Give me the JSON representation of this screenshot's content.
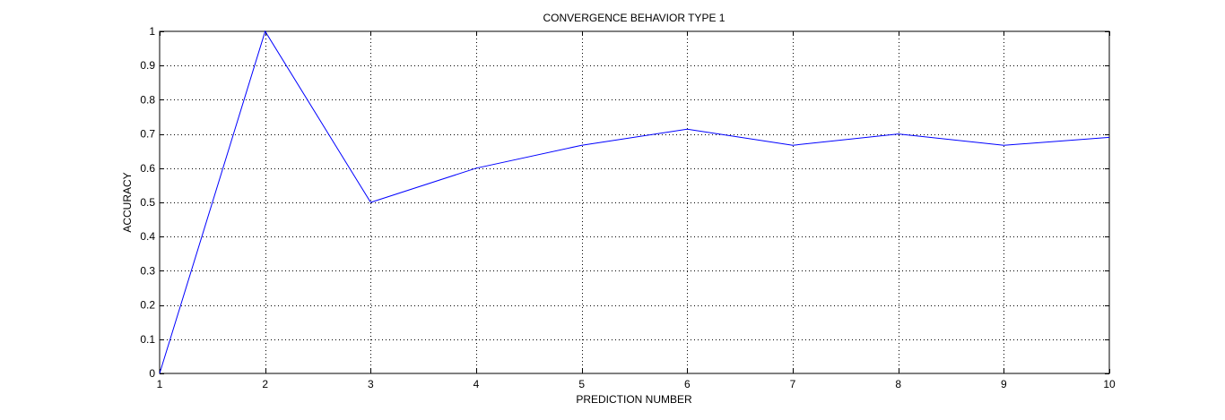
{
  "chart_data": {
    "type": "line",
    "title": "CONVERGENCE BEHAVIOR TYPE 1",
    "xlabel": "PREDICTION NUMBER",
    "ylabel": "ACCURACY",
    "xlim": [
      1,
      10
    ],
    "ylim": [
      0,
      1
    ],
    "grid": true,
    "x": [
      1,
      2,
      3,
      4,
      5,
      6,
      7,
      8,
      9,
      10
    ],
    "x_ticks": [
      "1",
      "2",
      "3",
      "4",
      "5",
      "6",
      "7",
      "8",
      "9",
      "10"
    ],
    "y_ticks": [
      "0",
      "0.1",
      "0.2",
      "0.3",
      "0.4",
      "0.5",
      "0.6",
      "0.7",
      "0.8",
      "0.9",
      "1"
    ],
    "series": [
      {
        "values": [
          0,
          1,
          0.5,
          0.6,
          0.667,
          0.714,
          0.667,
          0.7,
          0.667,
          0.69
        ],
        "color": "#0000ff"
      }
    ]
  }
}
